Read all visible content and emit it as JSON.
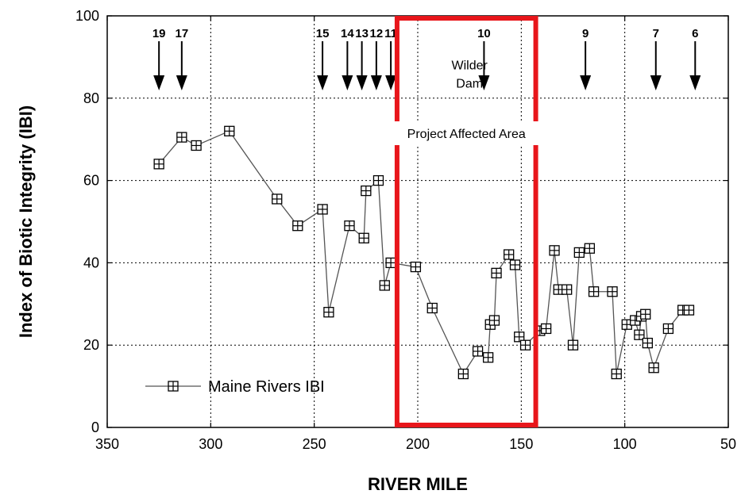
{
  "chart_data": {
    "type": "line",
    "xlabel": "RIVER MILE",
    "ylabel": "Index of Biotic Integrity (IBI)",
    "xlim": [
      350,
      50
    ],
    "ylim": [
      0,
      100
    ],
    "x_ticks": [
      350,
      300,
      250,
      200,
      150,
      100,
      50
    ],
    "y_ticks": [
      0,
      20,
      40,
      60,
      80,
      100
    ],
    "grid": true,
    "legend_position": "bottom-left",
    "series": [
      {
        "name": "Maine Rivers IBI",
        "marker": "boxed-plus",
        "x": [
          325,
          314,
          307,
          291,
          268,
          258,
          246,
          243,
          233,
          226,
          225,
          219,
          216,
          213,
          201,
          193,
          178,
          171,
          166,
          165,
          163,
          162,
          156,
          153,
          151,
          148,
          141,
          138,
          134,
          132,
          128,
          125,
          122,
          117,
          115,
          106,
          104,
          99,
          95,
          93,
          92,
          90,
          89,
          86,
          79,
          72,
          69
        ],
        "y": [
          64,
          70.5,
          68.5,
          72,
          55.5,
          49,
          53,
          28,
          49,
          46,
          57.5,
          60,
          34.5,
          40,
          39,
          29,
          13,
          18.5,
          17,
          25,
          26,
          37.5,
          42,
          39.5,
          22,
          20,
          23.5,
          24,
          43,
          33.5,
          33.5,
          20,
          42.5,
          43.5,
          33,
          33,
          13,
          25,
          26,
          22.5,
          27,
          27.5,
          20.5,
          14.5,
          24,
          28.5,
          28.5
        ]
      }
    ],
    "station_markers": [
      {
        "label": "19",
        "x": 325
      },
      {
        "label": "17",
        "x": 314
      },
      {
        "label": "15",
        "x": 246
      },
      {
        "label": "14",
        "x": 234
      },
      {
        "label": "13",
        "x": 227
      },
      {
        "label": "12",
        "x": 220
      },
      {
        "label": "11",
        "x": 213
      },
      {
        "label": "10",
        "x": 168
      },
      {
        "label": "9",
        "x": 119
      },
      {
        "label": "7",
        "x": 85
      },
      {
        "label": "6",
        "x": 66
      }
    ],
    "annotations": [
      {
        "text_lines": [
          "Wilder",
          "Dam"
        ],
        "x": 175,
        "y": 87
      },
      {
        "text": "Project Affected Area",
        "x_range": [
          210,
          143
        ]
      }
    ],
    "highlight_region": {
      "x_range": [
        210,
        143
      ],
      "y_range": [
        0,
        100
      ],
      "color": "#e8161b"
    }
  }
}
